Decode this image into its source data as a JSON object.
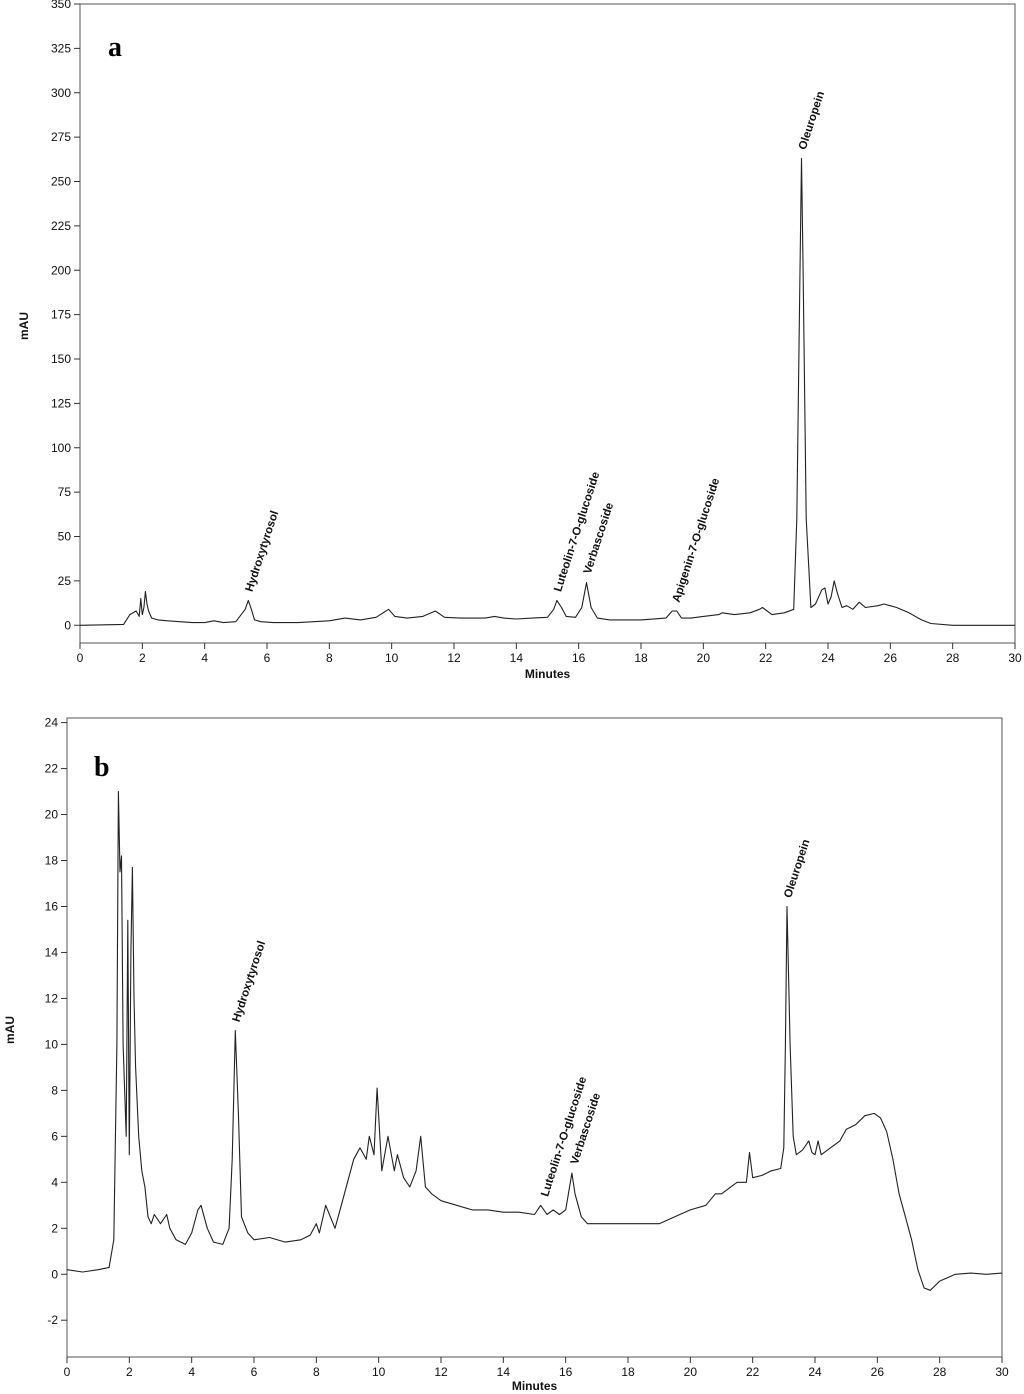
{
  "chart_data": [
    {
      "type": "line",
      "panel_label": "a",
      "xlabel": "Minutes",
      "ylabel": "mAU",
      "xlim": [
        0,
        30
      ],
      "ylim": [
        -10,
        350
      ],
      "xticks": [
        0,
        2,
        4,
        6,
        8,
        10,
        12,
        14,
        16,
        18,
        20,
        22,
        24,
        26,
        28,
        30
      ],
      "yticks": [
        0,
        25,
        50,
        75,
        100,
        125,
        150,
        175,
        200,
        225,
        250,
        275,
        300,
        325,
        350
      ],
      "grid": false,
      "series": [
        {
          "x": [
            0,
            1.4,
            1.6,
            1.8,
            1.9,
            1.95,
            2.0,
            2.05,
            2.1,
            2.15,
            2.2,
            2.3,
            2.5,
            2.8,
            3.2,
            3.6,
            4.0,
            4.3,
            4.6,
            5.0,
            5.3,
            5.4,
            5.5,
            5.6,
            5.8,
            6.2,
            7.0,
            8.0,
            8.5,
            9.0,
            9.5,
            9.9,
            10.1,
            10.5,
            11.0,
            11.4,
            11.7,
            12.2,
            13.0,
            13.3,
            13.6,
            14.0,
            14.5,
            15.0,
            15.2,
            15.3,
            15.45,
            15.6,
            15.9,
            16.1,
            16.25,
            16.4,
            16.6,
            17.0,
            18.0,
            18.8,
            19.0,
            19.15,
            19.3,
            19.6,
            20.0,
            20.5,
            20.6,
            21.0,
            21.5,
            21.8,
            21.9,
            22.2,
            22.6,
            22.9,
            23.0,
            23.1,
            23.15,
            23.2,
            23.3,
            23.45,
            23.6,
            23.8,
            23.9,
            24.0,
            24.1,
            24.2,
            24.3,
            24.45,
            24.6,
            24.8,
            25.0,
            25.2,
            25.6,
            25.8,
            26.2,
            26.6,
            27.0,
            27.3,
            28.0,
            30.0
          ],
          "y": [
            0,
            0.5,
            6,
            8,
            5,
            15,
            6,
            10,
            19,
            12,
            8,
            4,
            3,
            2.5,
            2,
            1.5,
            1.5,
            2.5,
            1.5,
            2,
            9,
            14,
            9,
            3,
            2,
            1.5,
            1.5,
            2.5,
            4,
            3,
            4.5,
            9,
            5,
            4,
            5,
            8,
            4.5,
            4,
            4,
            5,
            4,
            3.5,
            4,
            4.5,
            9,
            14,
            10,
            5,
            4.5,
            10,
            24,
            10,
            4,
            3,
            3,
            4,
            8,
            8,
            4,
            4,
            5,
            6,
            7,
            6,
            7,
            9,
            10,
            6,
            7,
            9,
            60,
            200,
            263,
            200,
            60,
            10,
            12,
            20,
            21,
            12,
            16,
            25,
            18,
            10,
            11,
            9,
            13,
            10,
            11,
            12,
            10,
            7,
            3,
            1,
            0,
            0
          ]
        }
      ],
      "annotations": [
        {
          "text": "Hydroxytyrosol",
          "x": 5.4
        },
        {
          "text": "Luteolin-7-O-glucoside",
          "x": 15.3
        },
        {
          "text": "Verbascoside",
          "x": 16.25
        },
        {
          "text": "Apigenin-7-O-glucoside",
          "x": 19.1
        },
        {
          "text": "Oleuropein",
          "x": 23.15
        }
      ]
    },
    {
      "type": "line",
      "panel_label": "b",
      "xlabel": "Minutes",
      "ylabel": "mAU",
      "xlim": [
        0,
        30
      ],
      "ylim": [
        -3.6,
        24.2
      ],
      "xticks": [
        0,
        2,
        4,
        6,
        8,
        10,
        12,
        14,
        16,
        18,
        20,
        22,
        24,
        26,
        28,
        30
      ],
      "yticks": [
        -2,
        0,
        2,
        4,
        6,
        8,
        10,
        12,
        14,
        16,
        18,
        20,
        22,
        24
      ],
      "grid": false,
      "series": [
        {
          "x": [
            0,
            0.5,
            1.0,
            1.35,
            1.5,
            1.6,
            1.65,
            1.7,
            1.75,
            1.8,
            1.9,
            1.95,
            2.0,
            2.05,
            2.1,
            2.15,
            2.2,
            2.3,
            2.4,
            2.5,
            2.6,
            2.7,
            2.8,
            3.0,
            3.2,
            3.3,
            3.5,
            3.8,
            4.0,
            4.2,
            4.3,
            4.5,
            4.7,
            5.0,
            5.2,
            5.3,
            5.4,
            5.5,
            5.6,
            5.8,
            6.0,
            6.5,
            7.0,
            7.5,
            7.8,
            8.0,
            8.1,
            8.3,
            8.6,
            8.8,
            9.0,
            9.2,
            9.4,
            9.6,
            9.7,
            9.85,
            9.95,
            10.1,
            10.3,
            10.5,
            10.6,
            10.8,
            11.0,
            11.2,
            11.35,
            11.5,
            11.7,
            12.0,
            12.5,
            13.0,
            13.5,
            14.0,
            14.5,
            15.0,
            15.2,
            15.4,
            15.6,
            15.8,
            16.0,
            16.2,
            16.3,
            16.5,
            16.7,
            17.0,
            17.5,
            18.0,
            19.0,
            19.5,
            20.0,
            20.5,
            20.8,
            21.0,
            21.5,
            21.8,
            21.9,
            22.0,
            22.3,
            22.6,
            22.9,
            23.0,
            23.05,
            23.1,
            23.2,
            23.3,
            23.4,
            23.6,
            23.8,
            23.9,
            24.0,
            24.1,
            24.2,
            24.4,
            24.8,
            25.0,
            25.3,
            25.6,
            25.9,
            26.1,
            26.3,
            26.5,
            26.7,
            26.9,
            27.0,
            27.1,
            27.3,
            27.5,
            27.7,
            28.0,
            28.5,
            29.0,
            29.5,
            30.0
          ],
          "y": [
            0.2,
            0.1,
            0.2,
            0.3,
            1.5,
            10,
            21,
            17.5,
            18.2,
            10,
            6,
            15.4,
            5.2,
            14,
            17.7,
            12,
            9,
            6,
            4.5,
            3.8,
            2.5,
            2.2,
            2.6,
            2.2,
            2.6,
            2.0,
            1.5,
            1.3,
            1.8,
            2.8,
            3.0,
            2.0,
            1.4,
            1.3,
            2.0,
            5.0,
            10.6,
            7.0,
            2.5,
            1.8,
            1.5,
            1.6,
            1.4,
            1.5,
            1.7,
            2.2,
            1.8,
            3.0,
            2.0,
            3.0,
            4.0,
            5.0,
            5.5,
            5.0,
            6.0,
            5.2,
            8.1,
            4.5,
            6.0,
            4.5,
            5.2,
            4.2,
            3.8,
            4.5,
            6.0,
            3.8,
            3.5,
            3.2,
            3.0,
            2.8,
            2.8,
            2.7,
            2.7,
            2.6,
            3.0,
            2.6,
            2.8,
            2.6,
            2.8,
            4.4,
            3.5,
            2.5,
            2.2,
            2.2,
            2.2,
            2.2,
            2.2,
            2.5,
            2.8,
            3.0,
            3.5,
            3.5,
            4.0,
            4.0,
            5.3,
            4.2,
            4.3,
            4.5,
            4.6,
            5.5,
            10,
            16.0,
            10,
            6,
            5.2,
            5.4,
            5.8,
            5.3,
            5.2,
            5.8,
            5.2,
            5.4,
            5.8,
            6.3,
            6.5,
            6.9,
            7.0,
            6.8,
            6.2,
            5.0,
            3.5,
            2.5,
            2.0,
            1.5,
            0.2,
            -0.6,
            -0.7,
            -0.3,
            0.0,
            0.05,
            0.0,
            0.05
          ]
        }
      ],
      "annotations": [
        {
          "text": "Hydroxytyrosol",
          "x": 5.4
        },
        {
          "text": "Luteolin-7-O-glucoside",
          "x": 15.3
        },
        {
          "text": "Verbascoside",
          "x": 16.25
        },
        {
          "text": "Oleuropein",
          "x": 23.1
        }
      ]
    }
  ]
}
